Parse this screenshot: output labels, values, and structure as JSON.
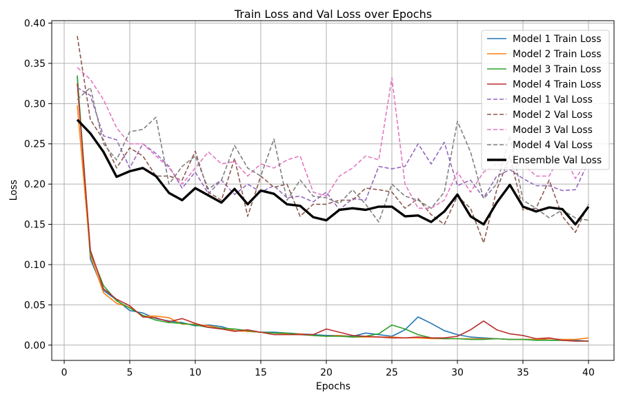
{
  "chart_data": {
    "type": "line",
    "title": "Train Loss and Val Loss over Epochs",
    "xlabel": "Epochs",
    "ylabel": "Loss",
    "xlim": [
      -0.95,
      41.95
    ],
    "ylim": [
      -0.019,
      0.403
    ],
    "xticks": [
      0,
      5,
      10,
      15,
      20,
      25,
      30,
      35,
      40
    ],
    "yticks": [
      0.0,
      0.05,
      0.1,
      0.15,
      0.2,
      0.25,
      0.3,
      0.35,
      0.4
    ],
    "ytick_labels": [
      "0.00",
      "0.05",
      "0.10",
      "0.15",
      "0.20",
      "0.25",
      "0.30",
      "0.35",
      "0.40"
    ],
    "grid": true,
    "legend_position": "top-right",
    "x": [
      1,
      2,
      3,
      4,
      5,
      6,
      7,
      8,
      9,
      10,
      11,
      12,
      13,
      14,
      15,
      16,
      17,
      18,
      19,
      20,
      21,
      22,
      23,
      24,
      25,
      26,
      27,
      28,
      29,
      30,
      31,
      32,
      33,
      34,
      35,
      36,
      37,
      38,
      39,
      40
    ],
    "series": [
      {
        "name": "Model 1 Train Loss",
        "color": "#1f77b4",
        "dash": "solid",
        "width": 1.6,
        "values": [
          0.333,
          0.107,
          0.068,
          0.056,
          0.043,
          0.04,
          0.033,
          0.03,
          0.028,
          0.024,
          0.025,
          0.023,
          0.018,
          0.017,
          0.016,
          0.016,
          0.015,
          0.014,
          0.013,
          0.012,
          0.012,
          0.011,
          0.015,
          0.013,
          0.011,
          0.019,
          0.035,
          0.027,
          0.018,
          0.013,
          0.01,
          0.009,
          0.008,
          0.007,
          0.007,
          0.007,
          0.006,
          0.006,
          0.006,
          0.005
        ]
      },
      {
        "name": "Model 2 Train Loss",
        "color": "#ff7f0e",
        "dash": "solid",
        "width": 1.6,
        "values": [
          0.298,
          0.112,
          0.065,
          0.052,
          0.047,
          0.036,
          0.036,
          0.034,
          0.026,
          0.026,
          0.024,
          0.021,
          0.018,
          0.017,
          0.016,
          0.015,
          0.014,
          0.014,
          0.012,
          0.011,
          0.012,
          0.01,
          0.01,
          0.01,
          0.01,
          0.009,
          0.009,
          0.008,
          0.008,
          0.008,
          0.008,
          0.008,
          0.008,
          0.007,
          0.007,
          0.007,
          0.008,
          0.007,
          0.007,
          0.009
        ]
      },
      {
        "name": "Model 3 Train Loss",
        "color": "#2ca02c",
        "dash": "solid",
        "width": 1.6,
        "values": [
          0.335,
          0.115,
          0.074,
          0.055,
          0.046,
          0.037,
          0.031,
          0.028,
          0.027,
          0.025,
          0.022,
          0.021,
          0.02,
          0.018,
          0.016,
          0.015,
          0.015,
          0.013,
          0.012,
          0.011,
          0.011,
          0.01,
          0.011,
          0.014,
          0.025,
          0.02,
          0.013,
          0.009,
          0.008,
          0.008,
          0.007,
          0.007,
          0.008,
          0.007,
          0.007,
          0.006,
          0.006,
          0.006,
          0.005,
          0.005
        ]
      },
      {
        "name": "Model 4 Train Loss",
        "color": "#b82e2e",
        "dash": "solid",
        "width": 1.6,
        "values": [
          0.325,
          0.118,
          0.07,
          0.057,
          0.049,
          0.035,
          0.034,
          0.029,
          0.033,
          0.027,
          0.022,
          0.02,
          0.017,
          0.019,
          0.016,
          0.013,
          0.013,
          0.013,
          0.013,
          0.02,
          0.016,
          0.012,
          0.011,
          0.01,
          0.009,
          0.009,
          0.01,
          0.009,
          0.009,
          0.011,
          0.019,
          0.03,
          0.019,
          0.014,
          0.012,
          0.008,
          0.009,
          0.006,
          0.005,
          0.005
        ]
      },
      {
        "name": "Model 1 Val Loss",
        "color": "#9467bd",
        "dash": "dashed",
        "width": 1.6,
        "values": [
          0.32,
          0.31,
          0.26,
          0.255,
          0.22,
          0.25,
          0.238,
          0.222,
          0.195,
          0.215,
          0.188,
          0.205,
          0.187,
          0.2,
          0.19,
          0.198,
          0.183,
          0.185,
          0.178,
          0.19,
          0.168,
          0.182,
          0.18,
          0.222,
          0.219,
          0.222,
          0.25,
          0.225,
          0.252,
          0.198,
          0.205,
          0.183,
          0.21,
          0.218,
          0.207,
          0.198,
          0.198,
          0.192,
          0.193,
          0.228
        ]
      },
      {
        "name": "Model 2 Val Loss",
        "color": "#8c564b",
        "dash": "dashed",
        "width": 1.6,
        "values": [
          0.384,
          0.28,
          0.255,
          0.22,
          0.245,
          0.235,
          0.21,
          0.21,
          0.205,
          0.241,
          0.19,
          0.18,
          0.232,
          0.16,
          0.21,
          0.196,
          0.2,
          0.16,
          0.175,
          0.175,
          0.18,
          0.18,
          0.195,
          0.193,
          0.19,
          0.17,
          0.182,
          0.162,
          0.15,
          0.185,
          0.17,
          0.127,
          0.193,
          0.235,
          0.168,
          0.17,
          0.205,
          0.16,
          0.14,
          0.175
        ]
      },
      {
        "name": "Model 3 Val Loss",
        "color": "#e377c2",
        "dash": "dashed",
        "width": 1.6,
        "values": [
          0.345,
          0.33,
          0.305,
          0.27,
          0.25,
          0.25,
          0.235,
          0.22,
          0.2,
          0.22,
          0.24,
          0.225,
          0.228,
          0.21,
          0.225,
          0.22,
          0.23,
          0.235,
          0.19,
          0.185,
          0.21,
          0.22,
          0.235,
          0.23,
          0.332,
          0.2,
          0.17,
          0.17,
          0.18,
          0.215,
          0.19,
          0.215,
          0.225,
          0.22,
          0.225,
          0.21,
          0.21,
          0.24,
          0.207,
          0.23
        ]
      },
      {
        "name": "Model 4 Val Loss",
        "color": "#7f7f7f",
        "dash": "dashed",
        "width": 1.6,
        "values": [
          0.305,
          0.32,
          0.25,
          0.23,
          0.265,
          0.268,
          0.283,
          0.2,
          0.222,
          0.235,
          0.194,
          0.205,
          0.248,
          0.22,
          0.21,
          0.256,
          0.18,
          0.205,
          0.185,
          0.183,
          0.176,
          0.193,
          0.175,
          0.153,
          0.2,
          0.185,
          0.18,
          0.17,
          0.19,
          0.278,
          0.24,
          0.182,
          0.2,
          0.26,
          0.18,
          0.17,
          0.158,
          0.168,
          0.158,
          0.155
        ]
      },
      {
        "name": "Ensemble Val Loss",
        "color": "#000000",
        "dash": "solid",
        "width": 3.4,
        "values": [
          0.28,
          0.263,
          0.24,
          0.209,
          0.216,
          0.22,
          0.21,
          0.189,
          0.18,
          0.195,
          0.186,
          0.177,
          0.194,
          0.175,
          0.192,
          0.188,
          0.175,
          0.173,
          0.159,
          0.155,
          0.168,
          0.17,
          0.168,
          0.172,
          0.172,
          0.16,
          0.161,
          0.153,
          0.166,
          0.187,
          0.16,
          0.15,
          0.177,
          0.199,
          0.172,
          0.166,
          0.171,
          0.169,
          0.15,
          0.172
        ]
      }
    ]
  }
}
